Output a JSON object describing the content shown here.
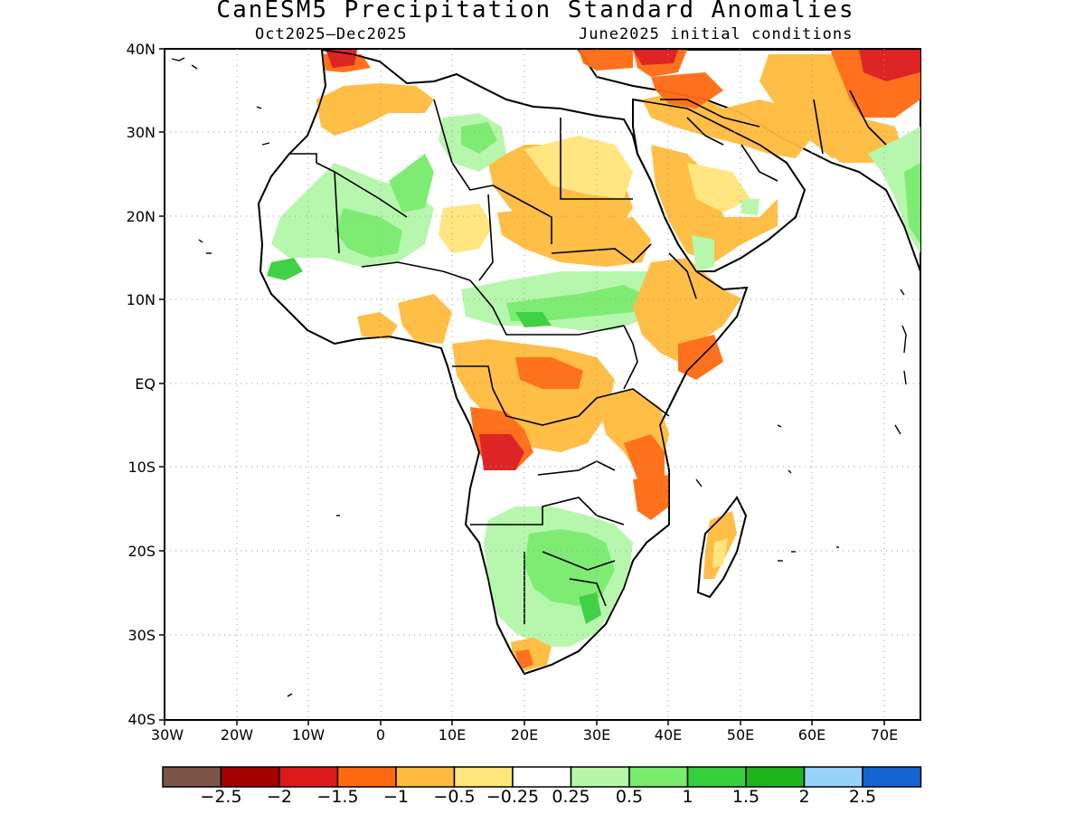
{
  "title": "CanESM5 Precipitation Standard Anomalies",
  "subtitle_left": "Oct2025–Dec2025",
  "subtitle_right": "June2025 initial conditions",
  "map": {
    "lat_labels": [
      "40N",
      "30N",
      "20N",
      "10N",
      "EQ",
      "10S",
      "20S",
      "30S",
      "40S"
    ],
    "lon_labels": [
      "30W",
      "20W",
      "10W",
      "0",
      "10E",
      "20E",
      "30E",
      "40E",
      "50E",
      "60E",
      "70E"
    ],
    "lat_range": [
      -40,
      40
    ],
    "lon_range": [
      -30,
      75
    ],
    "grid": "dotted"
  },
  "colorbar": {
    "colors": [
      "#7b5446",
      "#a50000",
      "#dd1a1a",
      "#ff6a10",
      "#ffbb3d",
      "#ffe57a",
      "#ffffff",
      "#b4f7a9",
      "#78ec6c",
      "#36d03c",
      "#1eb41e",
      "#96d2fa",
      "#1464d2"
    ],
    "labels": [
      "−2.5",
      "−2",
      "−1.5",
      "−1",
      "−0.5",
      "−0.25",
      "0.25",
      "0.5",
      "1",
      "1.5",
      "2",
      "2.5"
    ]
  }
}
